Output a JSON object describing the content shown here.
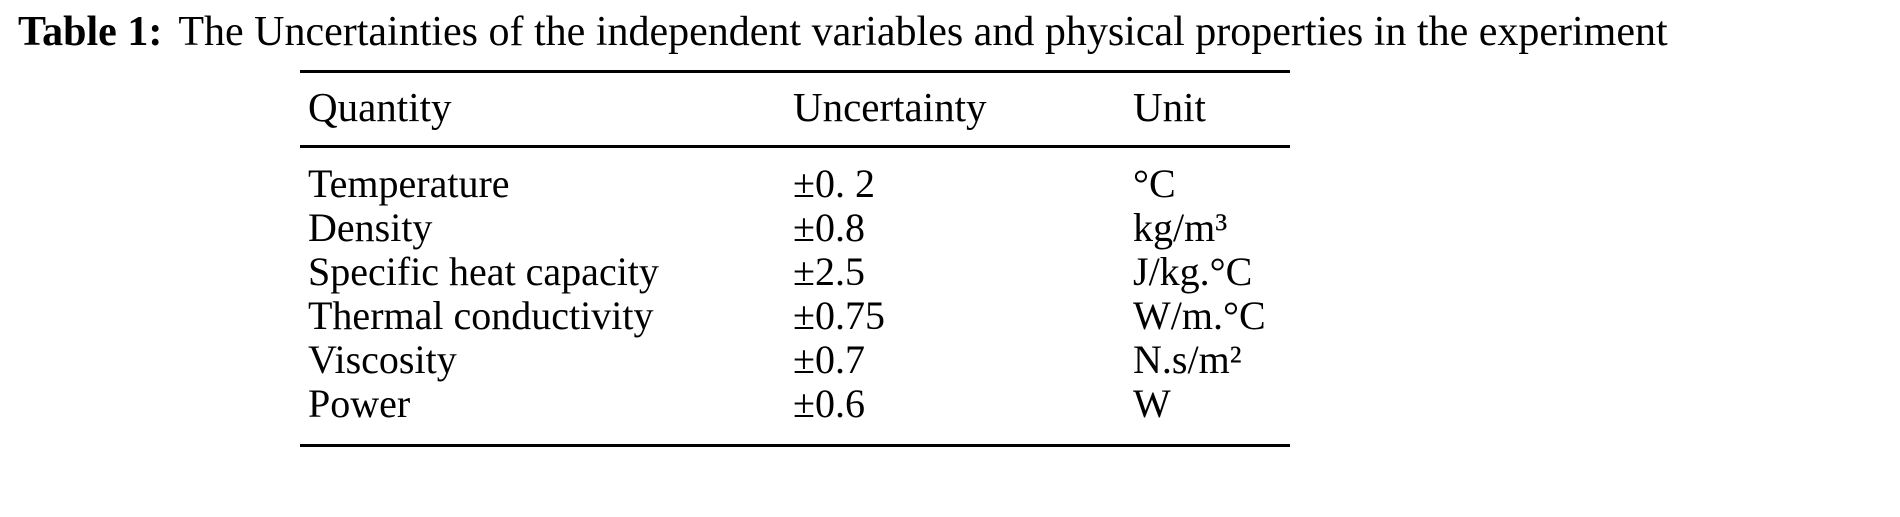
{
  "caption": {
    "label": "Table 1:",
    "text": "The Uncertainties of the independent variables and physical properties in the experiment"
  },
  "table": {
    "headers": [
      "Quantity",
      "Uncertainty",
      "Unit"
    ],
    "rows": [
      {
        "quantity": "Temperature",
        "uncertainty": "±0. 2",
        "unit": "°C"
      },
      {
        "quantity": "Density",
        "uncertainty": "±0.8",
        "unit": "kg/m³"
      },
      {
        "quantity": "Specific heat capacity",
        "uncertainty": "±2.5",
        "unit": "J/kg.°C"
      },
      {
        "quantity": "Thermal conductivity",
        "uncertainty": "±0.75",
        "unit": "W/m.°C"
      },
      {
        "quantity": "Viscosity",
        "uncertainty": "±0.7",
        "unit": "N.s/m²"
      },
      {
        "quantity": "Power",
        "uncertainty": "±0.6",
        "unit": "W"
      }
    ]
  }
}
